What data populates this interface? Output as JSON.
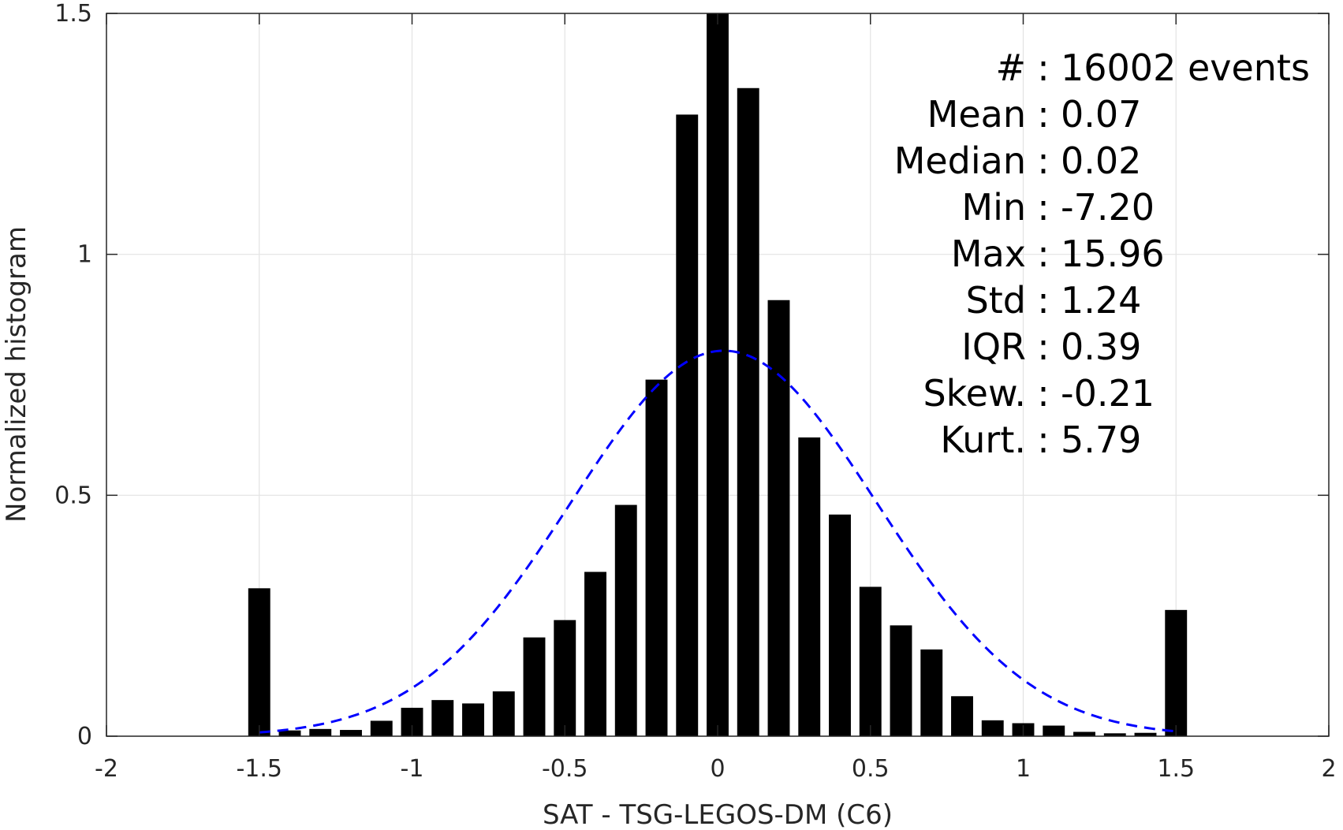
{
  "chart_data": {
    "type": "bar",
    "xlabel": "SAT - TSG-LEGOS-DM (C6)",
    "ylabel": "Normalized histogram",
    "xlim": [
      -2,
      2
    ],
    "ylim": [
      0,
      1.5
    ],
    "xticks": [
      -2,
      -1.5,
      -1,
      -0.5,
      0,
      0.5,
      1,
      1.5,
      2
    ],
    "xtick_labels": [
      "-2",
      "-1.5",
      "-1",
      "-0.5",
      "0",
      "0.5",
      "1",
      "1.5",
      "2"
    ],
    "yticks": [
      0,
      0.5,
      1,
      1.5
    ],
    "ytick_labels": [
      "0",
      "0.5",
      "1",
      "1.5"
    ],
    "grid": true,
    "bar_color": "#000000",
    "bin_width": 0.1,
    "x": [
      -1.5,
      -1.4,
      -1.3,
      -1.2,
      -1.1,
      -1.0,
      -0.9,
      -0.8,
      -0.7,
      -0.6,
      -0.5,
      -0.4,
      -0.3,
      -0.2,
      -0.1,
      0.0,
      0.1,
      0.2,
      0.3,
      0.4,
      0.5,
      0.6,
      0.7,
      0.8,
      0.9,
      1.0,
      1.1,
      1.2,
      1.3,
      1.4,
      1.5
    ],
    "values": [
      0.307,
      0.012,
      0.015,
      0.013,
      0.032,
      0.059,
      0.075,
      0.068,
      0.093,
      0.205,
      0.241,
      0.341,
      0.48,
      0.74,
      1.29,
      1.5,
      1.345,
      0.905,
      0.62,
      0.46,
      0.31,
      0.23,
      0.18,
      0.083,
      0.033,
      0.027,
      0.022,
      0.009,
      0.006,
      0.007,
      0.262
    ],
    "fit_curve": {
      "style": "dashed",
      "color": "#0000ff",
      "mean": 0.02,
      "peak": 0.8,
      "sigma": 0.5,
      "x_range": [
        -1.5,
        1.5
      ]
    },
    "stats": [
      {
        "label": "#",
        "sep": ":",
        "value": "16002 events"
      },
      {
        "label": "Mean",
        "sep": ":",
        "value": "0.07"
      },
      {
        "label": "Median",
        "sep": ":",
        "value": "0.02"
      },
      {
        "label": "Min",
        "sep": ":",
        "value": "-7.20"
      },
      {
        "label": "Max",
        "sep": ":",
        "value": "15.96"
      },
      {
        "label": "Std",
        "sep": ":",
        "value": "1.24"
      },
      {
        "label": "IQR",
        "sep": ":",
        "value": "0.39"
      },
      {
        "label": "Skew.",
        "sep": ":",
        "value": "-0.21"
      },
      {
        "label": "Kurt.",
        "sep": ":",
        "value": "5.79"
      }
    ]
  }
}
